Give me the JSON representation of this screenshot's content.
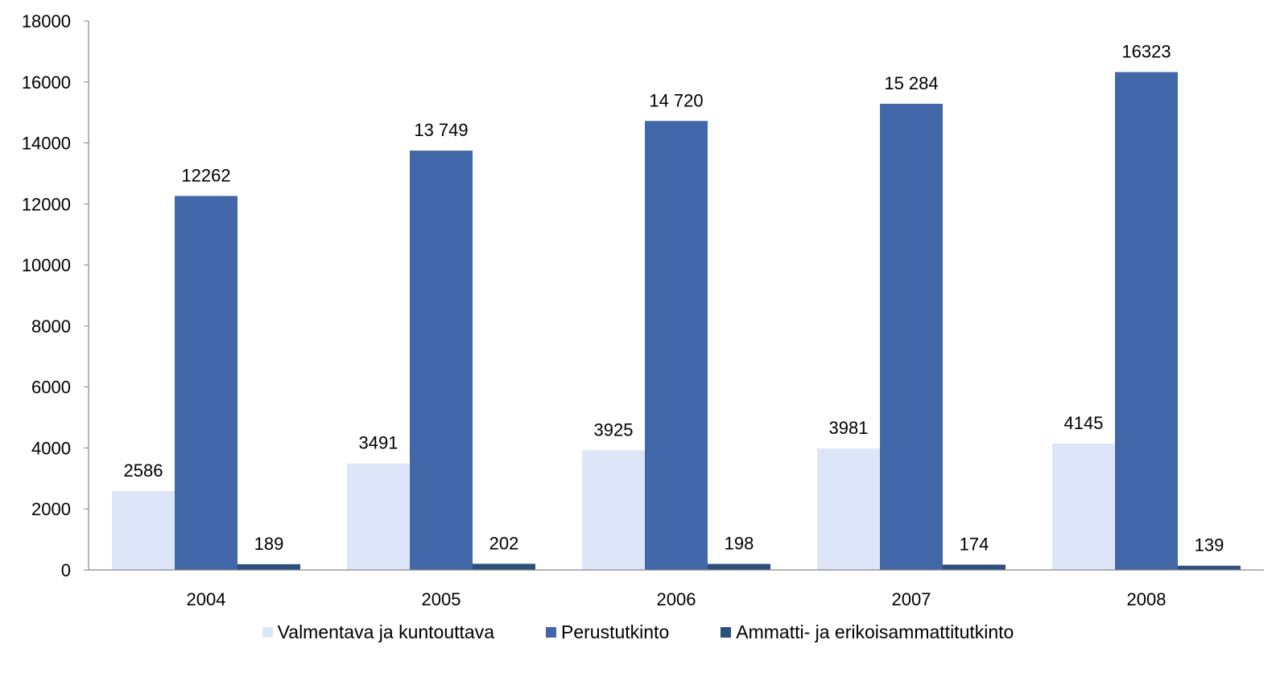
{
  "chart_data": {
    "type": "bar",
    "categories": [
      "2004",
      "2005",
      "2006",
      "2007",
      "2008"
    ],
    "series": [
      {
        "name": "Valmentava ja kuntouttava",
        "color": "#dce6f8",
        "values": [
          2586,
          3491,
          3925,
          3981,
          4145
        ],
        "labels": [
          "2586",
          "3491",
          "3925",
          "3981",
          "4145"
        ]
      },
      {
        "name": "Perustutkinto",
        "color": "#4167a9",
        "values": [
          12262,
          13749,
          14720,
          15284,
          16323
        ],
        "labels": [
          "12262",
          "13 749",
          "14 720",
          "15 284",
          "16323"
        ]
      },
      {
        "name": "Ammatti- ja erikoisammattitutkinto",
        "color": "#2d4f7c",
        "values": [
          189,
          202,
          198,
          174,
          139
        ],
        "labels": [
          "189",
          "202",
          "198",
          "174",
          "139"
        ]
      }
    ],
    "yticks": [
      "0",
      "2000",
      "4000",
      "6000",
      "8000",
      "10000",
      "12000",
      "14000",
      "16000",
      "18000"
    ],
    "ylim": [
      0,
      18000
    ],
    "grid": false,
    "legend_position": "bottom",
    "title": "",
    "xlabel": "",
    "ylabel": ""
  }
}
